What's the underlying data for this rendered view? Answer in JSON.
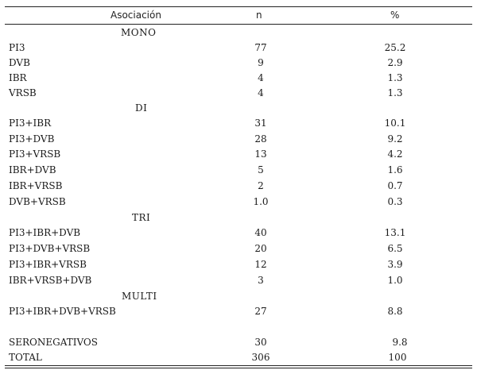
{
  "header": {
    "col1": "Asociación",
    "col2": "n",
    "col3": "%"
  },
  "groups": {
    "mono": "MONO",
    "di": "DI",
    "tri": "TRI",
    "multi": "MULTI"
  },
  "rows": {
    "pi3": {
      "label": "PI3",
      "n": "77",
      "pct": "25.2"
    },
    "dvb": {
      "label": "DVB",
      "n": "9",
      "pct": "2.9"
    },
    "ibr": {
      "label": "IBR",
      "n": "4",
      "pct": "1.3"
    },
    "vrsb": {
      "label": "VRSB",
      "n": "4",
      "pct": "1.3"
    },
    "pi3_ibr": {
      "label": "PI3+IBR",
      "n": "31",
      "pct": "10.1"
    },
    "pi3_dvb": {
      "label": "PI3+DVB",
      "n": "28",
      "pct": "9.2"
    },
    "pi3_vrsb": {
      "label": "PI3+VRSB",
      "n": "13",
      "pct": "4.2"
    },
    "ibr_dvb": {
      "label": "IBR+DVB",
      "n": "5",
      "pct": "1.6"
    },
    "ibr_vrsb": {
      "label": "IBR+VRSB",
      "n": "2",
      "pct": "0.7"
    },
    "dvb_vrsb": {
      "label": "DVB+VRSB",
      "n": "1.0",
      "pct": "0.3"
    },
    "pi3_ibr_dvb": {
      "label": "PI3+IBR+DVB",
      "n": "40",
      "pct": "13.1"
    },
    "pi3_dvb_vrsb": {
      "label": "PI3+DVB+VRSB",
      "n": "20",
      "pct": "6.5"
    },
    "pi3_ibr_vrsb": {
      "label": "PI3+IBR+VRSB",
      "n": "12",
      "pct": "3.9"
    },
    "ibr_vrsb_dvb": {
      "label": "IBR+VRSB+DVB",
      "n": "3",
      "pct": "1.0"
    },
    "pi3_ibr_dvb_vrsb": {
      "label": "PI3+IBR+DVB+VRSB",
      "n": "27",
      "pct": "8.8"
    },
    "seronegativos": {
      "label": "SERONEGATIVOS",
      "n": "30",
      "pct": "9.8"
    },
    "total": {
      "label": "TOTAL",
      "n": "306",
      "pct": "100"
    }
  }
}
